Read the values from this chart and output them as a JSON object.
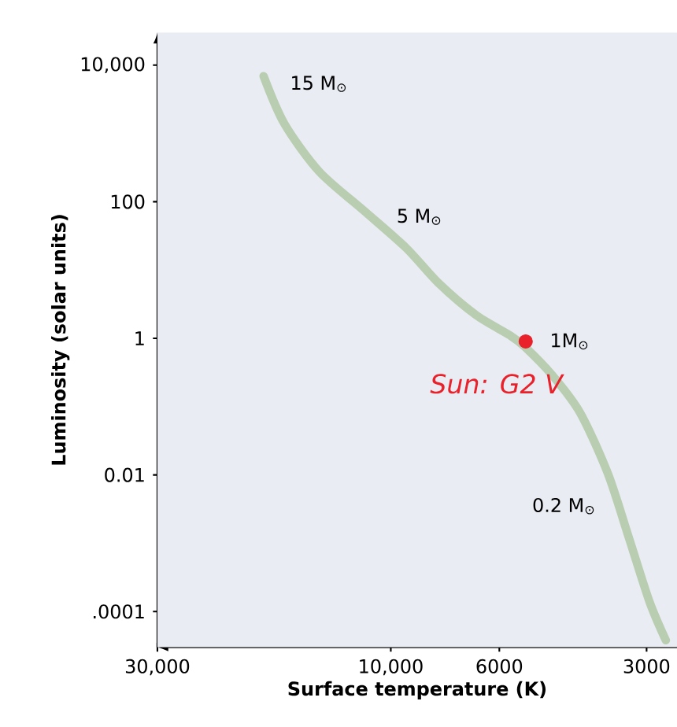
{
  "chart_data": {
    "type": "line",
    "xlabel": "Surface temperature (K)",
    "ylabel": "Luminosity (solar units)",
    "log": "xy",
    "grid": false,
    "legend": false,
    "xlim": [
      30000,
      2600
    ],
    "ylim": [
      3e-05,
      30000
    ],
    "xticks": [
      {
        "value": 30000,
        "label": "30,000"
      },
      {
        "value": 10000,
        "label": "10,000"
      },
      6000,
      3000
    ],
    "yticks": [
      {
        "value": 10000,
        "label": "10,000"
      },
      100,
      1,
      0.01,
      {
        "value": 0.0001,
        "label": ".0001"
      }
    ],
    "series": [
      {
        "color": "#b9cdb1",
        "marker": "none",
        "x": [
          18200,
          16500,
          14000,
          11300,
          9300,
          8000,
          6700,
          5700,
          5330,
          4680,
          4100,
          3600,
          3260,
          2960,
          2740
        ],
        "values": [
          6900,
          1380,
          275,
          72,
          21,
          6.5,
          2.2,
          1.1,
          0.76,
          0.29,
          0.081,
          0.0105,
          0.0012,
          0.00014,
          3.8e-05
        ]
      },
      {
        "type": "scatter",
        "name": "Sun: G2 V",
        "color": "#e8212b",
        "marker": "circle",
        "x": [
          5300
        ],
        "values": [
          0.9
        ]
      }
    ],
    "annotations": [
      {
        "text": "15 M$_{⊙}$",
        "x": 18000,
        "y": 5300
      },
      {
        "text": "5 M$_{⊙}$",
        "x": 10900,
        "y": 60
      },
      {
        "text": "1M$_{⊙}$",
        "x": 5300,
        "y": 0.9
      },
      {
        "text": "0.2 M$_{⊙}$",
        "x": 3400,
        "y": 0.0035
      }
    ]
  }
}
